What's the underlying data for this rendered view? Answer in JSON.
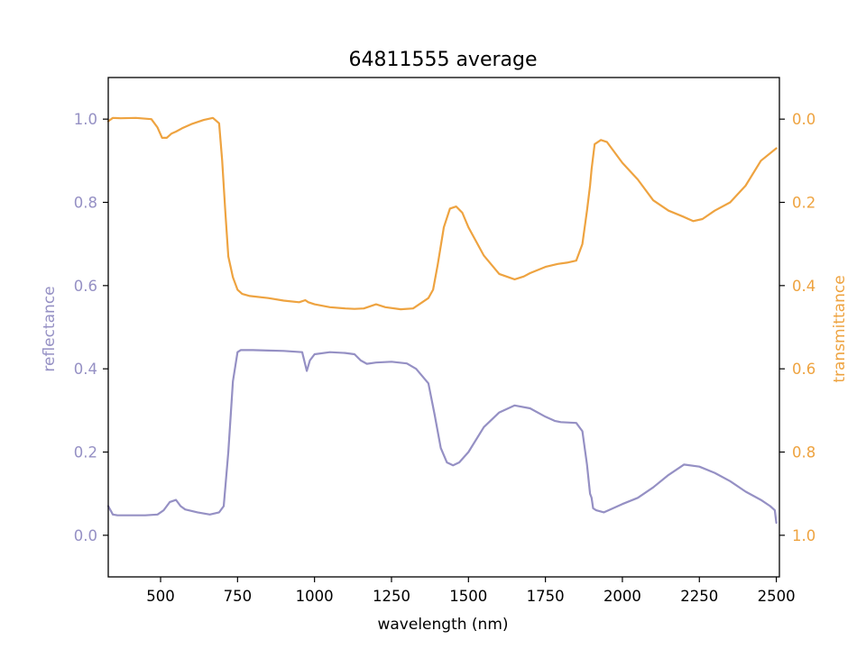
{
  "colors": {
    "reflectance": "#9590c4",
    "transmittance": "#eea340",
    "axis": "#000000",
    "background": "#ffffff"
  },
  "chart_data": {
    "type": "line",
    "title": "64811555 average",
    "xlabel": "wavelength (nm)",
    "ylabel_left": "reflectance",
    "ylabel_right": "transmittance",
    "xlim": [
      330,
      2510
    ],
    "ylim_left": [
      -0.1,
      1.1
    ],
    "ylim_right": [
      1.1,
      -0.1
    ],
    "right_axis_inverted": true,
    "grid": false,
    "x_ticks": [
      500,
      750,
      1000,
      1250,
      1500,
      1750,
      2000,
      2250,
      2500
    ],
    "y_left_ticks": [
      0.0,
      0.2,
      0.4,
      0.6,
      0.8,
      1.0
    ],
    "y_right_ticks": [
      0.0,
      0.2,
      0.4,
      0.6,
      0.8,
      1.0
    ],
    "x_tick_labels": [
      "500",
      "750",
      "1000",
      "1250",
      "1500",
      "1750",
      "2000",
      "2250",
      "2500"
    ],
    "y_left_tick_labels": [
      "0.0",
      "0.2",
      "0.4",
      "0.6",
      "0.8",
      "1.0"
    ],
    "y_right_tick_labels": [
      "0.0",
      "0.2",
      "0.4",
      "0.6",
      "0.8",
      "1.0"
    ],
    "series": [
      {
        "name": "reflectance",
        "axis": "left",
        "x": [
          330,
          345,
          360,
          400,
          450,
          490,
          510,
          530,
          550,
          565,
          580,
          620,
          660,
          690,
          705,
          720,
          735,
          750,
          760,
          800,
          850,
          900,
          960,
          975,
          985,
          1000,
          1050,
          1100,
          1130,
          1150,
          1170,
          1200,
          1250,
          1300,
          1330,
          1370,
          1390,
          1410,
          1430,
          1450,
          1470,
          1500,
          1550,
          1600,
          1650,
          1700,
          1750,
          1780,
          1800,
          1850,
          1870,
          1885,
          1895,
          1900,
          1905,
          1915,
          1940,
          2000,
          2050,
          2100,
          2150,
          2200,
          2250,
          2300,
          2350,
          2400,
          2450,
          2480,
          2495,
          2500
        ],
        "values": [
          0.07,
          0.05,
          0.048,
          0.048,
          0.048,
          0.05,
          0.06,
          0.08,
          0.085,
          0.07,
          0.062,
          0.055,
          0.05,
          0.055,
          0.07,
          0.2,
          0.37,
          0.44,
          0.445,
          0.445,
          0.444,
          0.443,
          0.44,
          0.395,
          0.42,
          0.435,
          0.44,
          0.438,
          0.435,
          0.42,
          0.412,
          0.415,
          0.417,
          0.413,
          0.4,
          0.365,
          0.29,
          0.21,
          0.175,
          0.168,
          0.175,
          0.2,
          0.26,
          0.295,
          0.312,
          0.305,
          0.285,
          0.275,
          0.272,
          0.27,
          0.25,
          0.17,
          0.1,
          0.09,
          0.065,
          0.06,
          0.055,
          0.075,
          0.09,
          0.115,
          0.145,
          0.17,
          0.165,
          0.15,
          0.13,
          0.105,
          0.085,
          0.07,
          0.06,
          0.03
        ]
      },
      {
        "name": "transmittance",
        "axis": "right",
        "x": [
          330,
          345,
          370,
          420,
          470,
          490,
          505,
          520,
          535,
          550,
          570,
          600,
          640,
          670,
          690,
          700,
          710,
          720,
          735,
          750,
          765,
          790,
          850,
          900,
          950,
          970,
          980,
          1000,
          1050,
          1100,
          1130,
          1160,
          1200,
          1230,
          1280,
          1320,
          1350,
          1370,
          1385,
          1400,
          1420,
          1440,
          1460,
          1480,
          1500,
          1550,
          1600,
          1650,
          1680,
          1700,
          1750,
          1790,
          1820,
          1850,
          1870,
          1885,
          1895,
          1900,
          1910,
          1930,
          1950,
          2000,
          2050,
          2100,
          2150,
          2200,
          2230,
          2260,
          2300,
          2350,
          2400,
          2450,
          2500
        ],
        "values": [
          0.005,
          -0.003,
          -0.002,
          -0.003,
          0.0,
          0.02,
          0.045,
          0.045,
          0.035,
          0.03,
          0.022,
          0.012,
          0.002,
          -0.003,
          0.01,
          0.1,
          0.22,
          0.33,
          0.38,
          0.41,
          0.42,
          0.425,
          0.43,
          0.436,
          0.44,
          0.435,
          0.44,
          0.445,
          0.452,
          0.455,
          0.456,
          0.455,
          0.445,
          0.452,
          0.457,
          0.455,
          0.44,
          0.43,
          0.41,
          0.35,
          0.26,
          0.215,
          0.21,
          0.225,
          0.26,
          0.328,
          0.372,
          0.385,
          0.378,
          0.37,
          0.355,
          0.348,
          0.345,
          0.34,
          0.3,
          0.22,
          0.16,
          0.12,
          0.06,
          0.05,
          0.055,
          0.105,
          0.145,
          0.195,
          0.22,
          0.235,
          0.245,
          0.24,
          0.22,
          0.2,
          0.16,
          0.1,
          0.07
        ]
      }
    ]
  }
}
